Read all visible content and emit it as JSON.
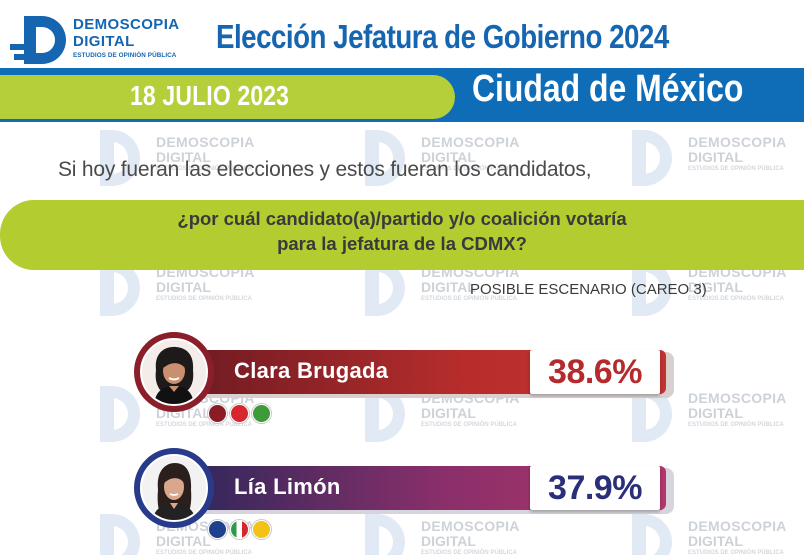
{
  "header": {
    "brand_line1": "DEMOSCOPIA",
    "brand_line2": "DIGITAL",
    "brand_tagline": "ESTUDIOS DE OPINIÓN PÚBLICA",
    "title_line1": "Elección Jefatura de Gobierno 2024",
    "title_line2": "Ciudad de México",
    "date": "18 JULIO 2023"
  },
  "question": {
    "line1": "Si hoy fueran las elecciones y estos fueran los candidatos,",
    "line2a": "¿por cuál candidato(a)/partido y/o coalición votaría",
    "line2b": "para la jefatura de la CDMX?",
    "scenario": "POSIBLE ESCENARIO (CAREO 3)"
  },
  "watermark": {
    "line1": "DEMOSCOPIA",
    "line2": "DIGITAL",
    "line3": "ESTUDIOS DE OPINIÓN PÚBLICA"
  },
  "candidates": [
    {
      "name": "Clara Brugada",
      "percent": "38.6%",
      "value": 38.6,
      "color": "#b52a2d",
      "party_icons": [
        "morena-logo-icon",
        "pt-logo-icon",
        "pvem-logo-icon"
      ]
    },
    {
      "name": "Lía Limón",
      "percent": "37.9%",
      "value": 37.9,
      "color": "#2b2f7a",
      "party_icons": [
        "pan-logo-icon",
        "pri-logo-icon",
        "prd-logo-icon"
      ]
    }
  ],
  "colors": {
    "brand_blue": "#1565b0",
    "band_blue": "#0f6db8",
    "accent_green": "#b3cc30"
  }
}
